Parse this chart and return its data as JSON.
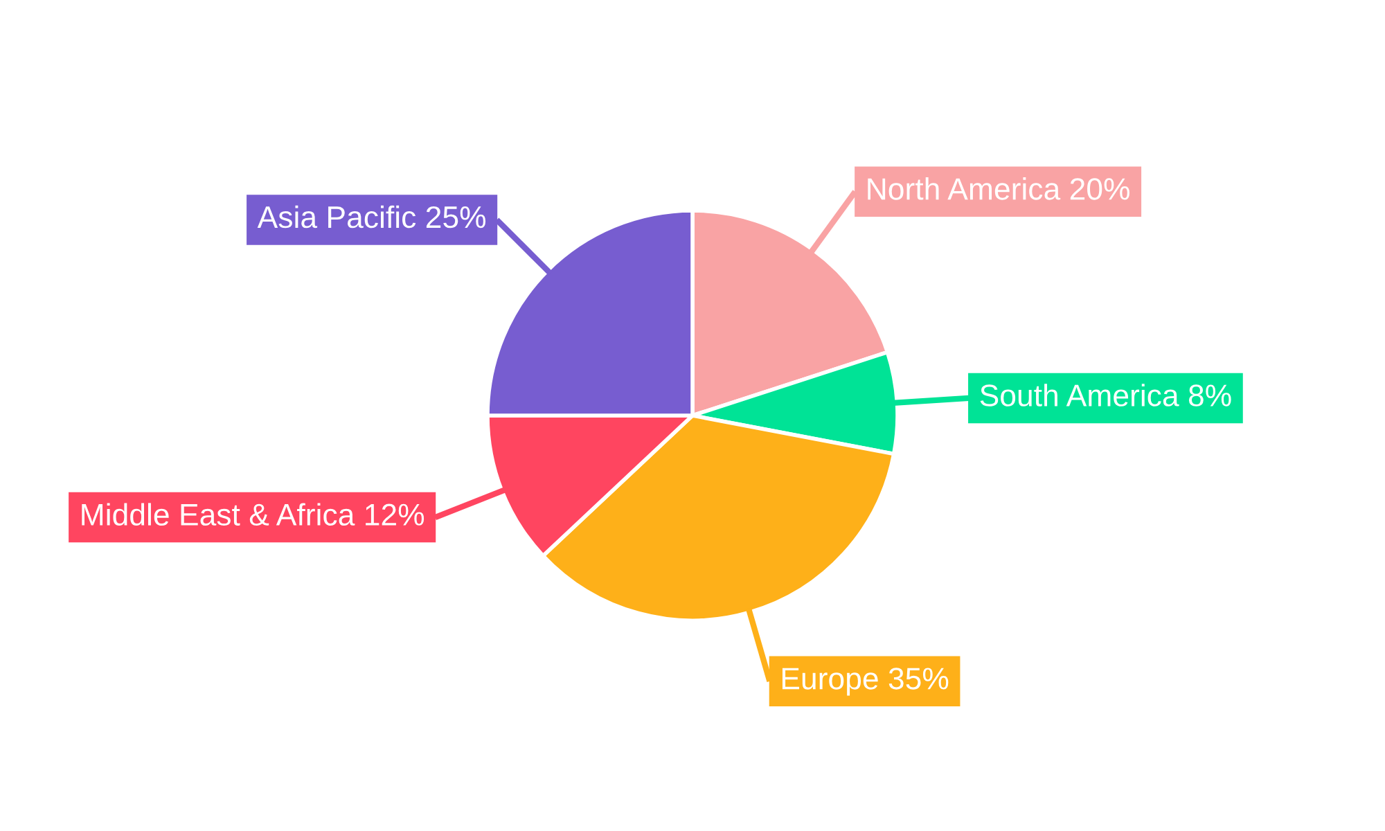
{
  "chart_data": {
    "type": "pie",
    "categories": [
      "North America",
      "South America",
      "Europe",
      "Middle East & Africa",
      "Asia Pacific"
    ],
    "values": [
      20,
      8,
      35,
      12,
      25
    ],
    "value_labels": [
      "20%",
      "8%",
      "35%",
      "12%",
      "25%"
    ],
    "colors": [
      "#f9a3a4",
      "#00e396",
      "#feb019",
      "#ff4560",
      "#775dd0"
    ],
    "legend": false
  }
}
